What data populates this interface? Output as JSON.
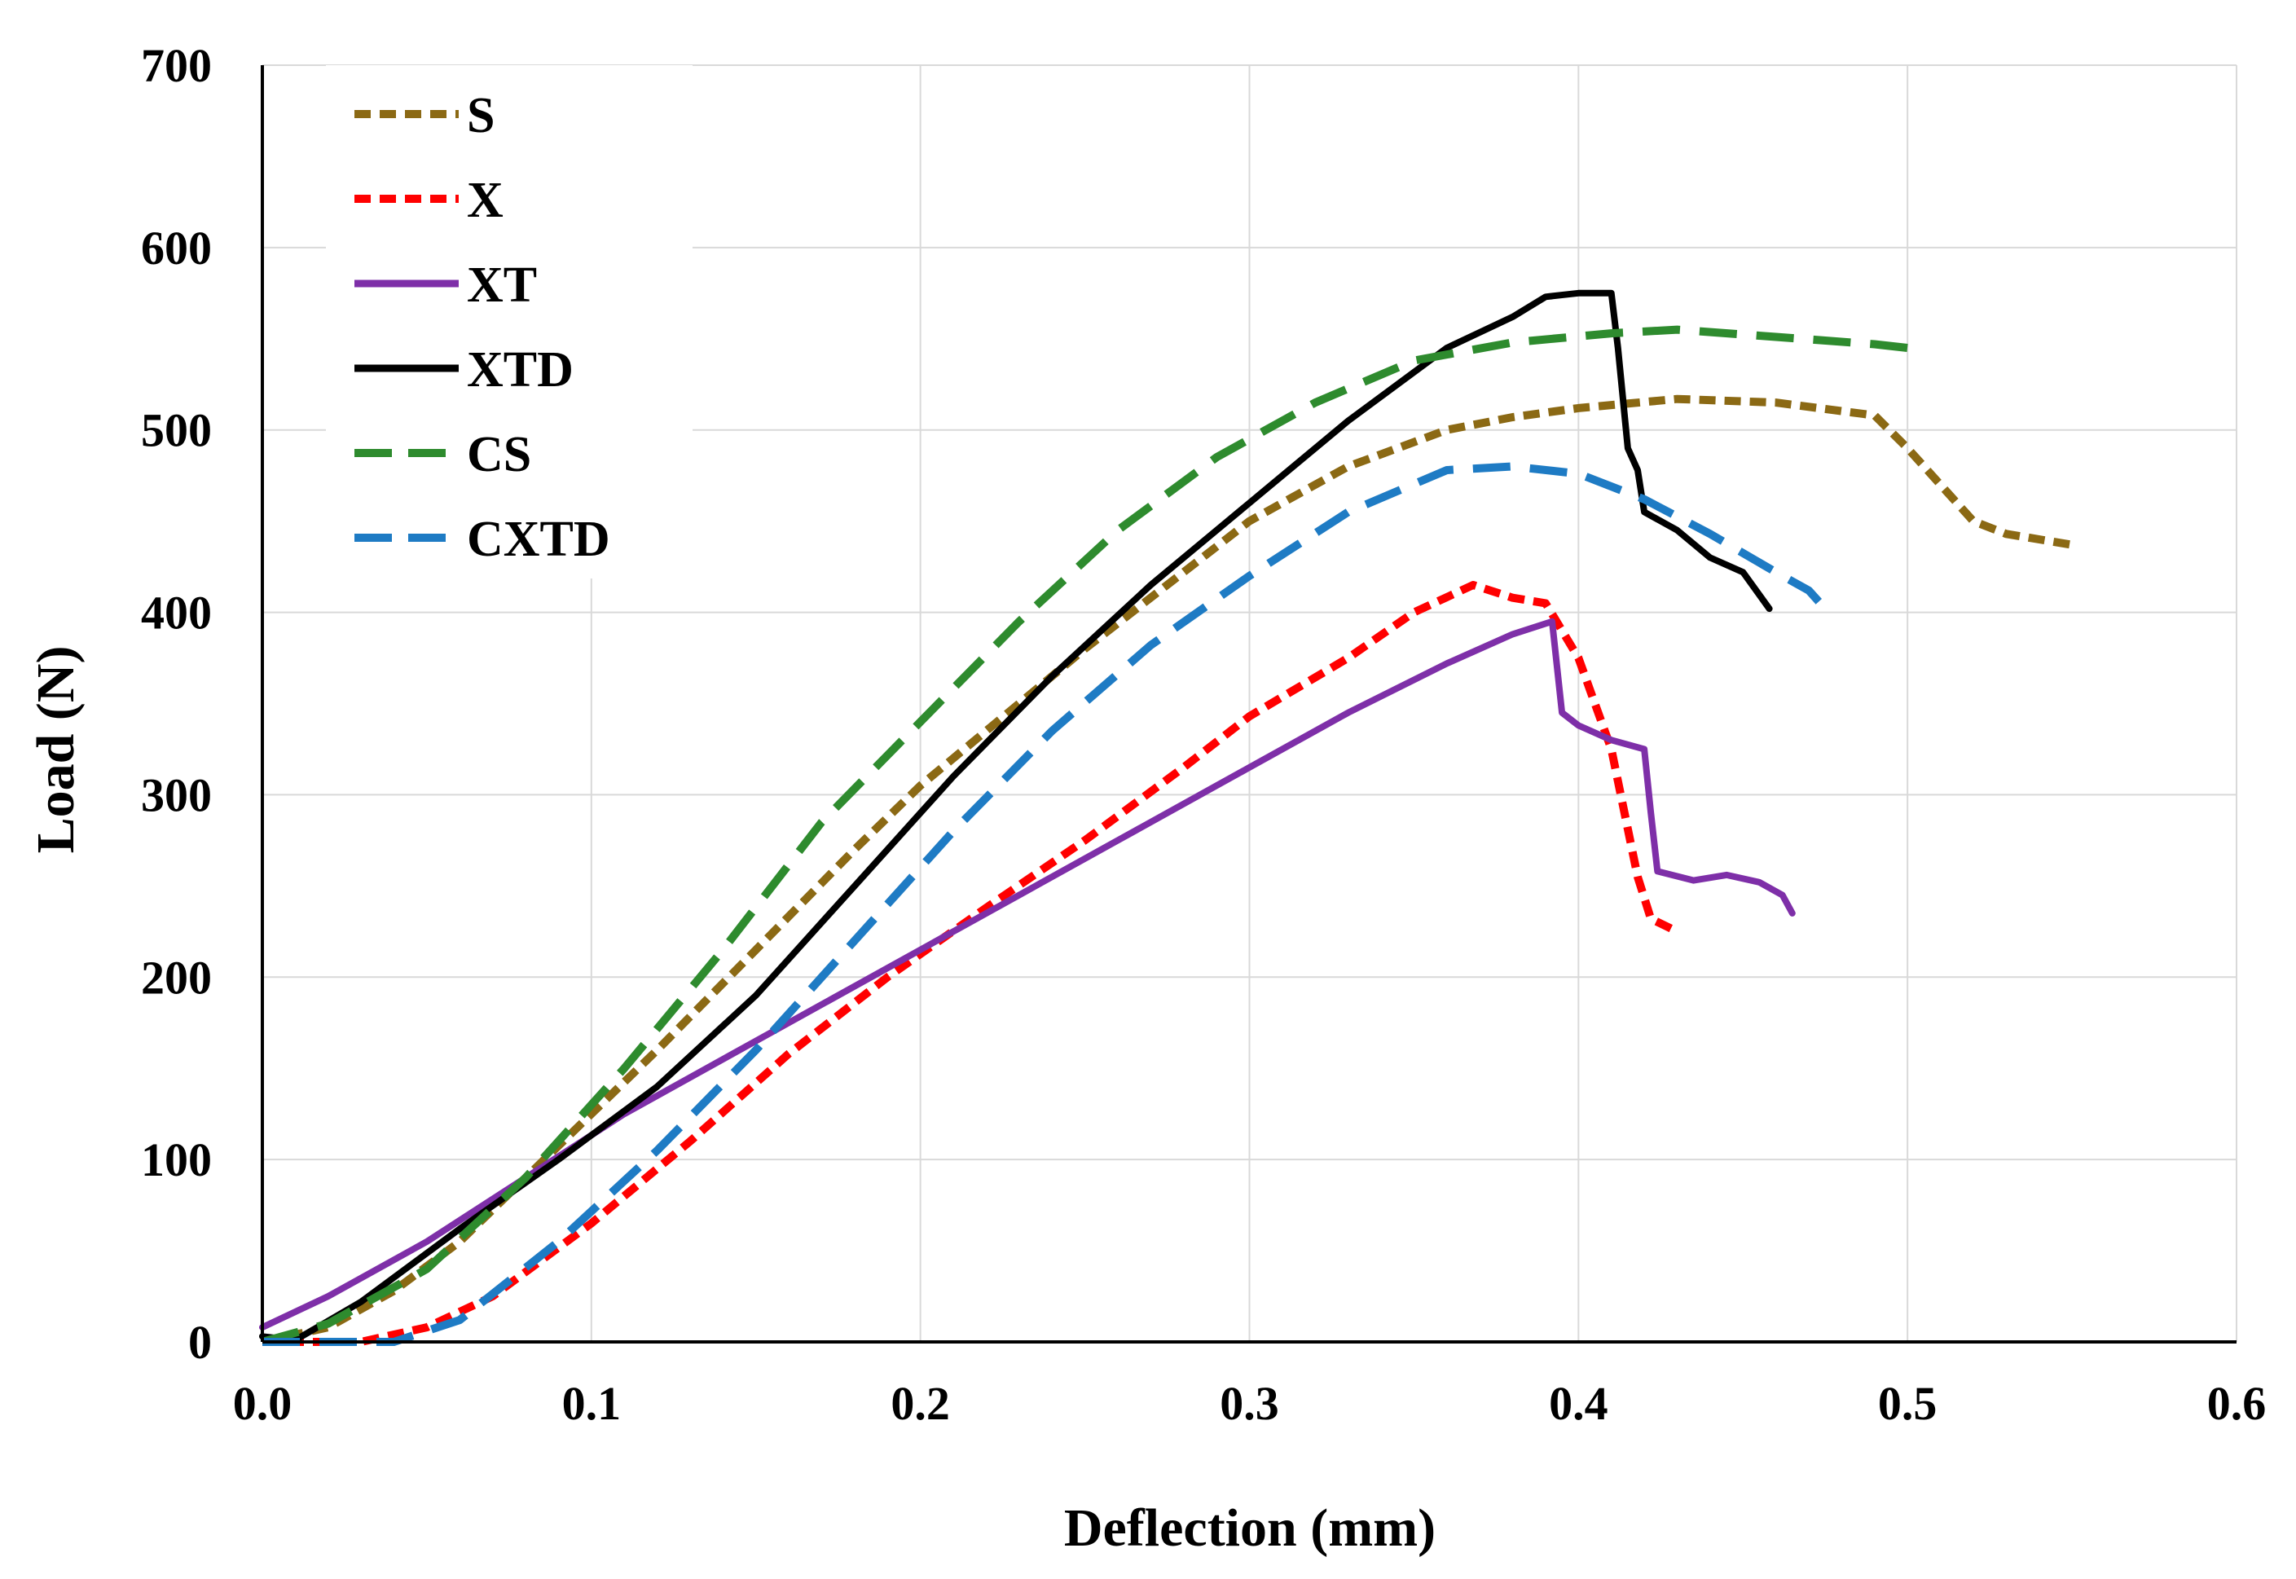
{
  "chart_data": {
    "type": "line",
    "title": "",
    "xlabel": "Deflection  (mm)",
    "ylabel": "Load  (N)",
    "xlim": [
      0,
      0.6
    ],
    "ylim": [
      0,
      700
    ],
    "xticks": [
      "0.0",
      "0.1",
      "0.2",
      "0.3",
      "0.4",
      "0.5",
      "0.6"
    ],
    "yticks": [
      "0",
      "100",
      "200",
      "300",
      "400",
      "500",
      "600",
      "700"
    ],
    "grid": true,
    "legend_position": "top-left",
    "series": [
      {
        "name": "S",
        "color": "#8B6914",
        "style": "short-dash",
        "points": [
          [
            0.0,
            0
          ],
          [
            0.02,
            8
          ],
          [
            0.04,
            28
          ],
          [
            0.06,
            55
          ],
          [
            0.08,
            90
          ],
          [
            0.1,
            125
          ],
          [
            0.12,
            160
          ],
          [
            0.15,
            215
          ],
          [
            0.18,
            270
          ],
          [
            0.2,
            305
          ],
          [
            0.22,
            335
          ],
          [
            0.25,
            380
          ],
          [
            0.28,
            422
          ],
          [
            0.3,
            450
          ],
          [
            0.33,
            480
          ],
          [
            0.36,
            500
          ],
          [
            0.38,
            507
          ],
          [
            0.4,
            512
          ],
          [
            0.43,
            517
          ],
          [
            0.46,
            515
          ],
          [
            0.49,
            508
          ],
          [
            0.5,
            490
          ],
          [
            0.51,
            470
          ],
          [
            0.52,
            450
          ],
          [
            0.53,
            443
          ],
          [
            0.55,
            437
          ]
        ]
      },
      {
        "name": "X",
        "color": "#FF0000",
        "style": "short-dash",
        "points": [
          [
            0.0,
            0
          ],
          [
            0.03,
            0
          ],
          [
            0.05,
            8
          ],
          [
            0.07,
            25
          ],
          [
            0.1,
            65
          ],
          [
            0.13,
            110
          ],
          [
            0.16,
            158
          ],
          [
            0.19,
            200
          ],
          [
            0.22,
            238
          ],
          [
            0.25,
            275
          ],
          [
            0.28,
            315
          ],
          [
            0.3,
            343
          ],
          [
            0.33,
            375
          ],
          [
            0.35,
            400
          ],
          [
            0.368,
            415
          ],
          [
            0.38,
            408
          ],
          [
            0.39,
            405
          ],
          [
            0.4,
            375
          ],
          [
            0.41,
            325
          ],
          [
            0.418,
            255
          ],
          [
            0.422,
            232
          ],
          [
            0.43,
            225
          ]
        ]
      },
      {
        "name": "XT",
        "color": "#7E2FA8",
        "style": "solid",
        "points": [
          [
            0.0,
            8
          ],
          [
            0.02,
            25
          ],
          [
            0.05,
            55
          ],
          [
            0.08,
            90
          ],
          [
            0.11,
            125
          ],
          [
            0.14,
            155
          ],
          [
            0.17,
            185
          ],
          [
            0.2,
            215
          ],
          [
            0.23,
            245
          ],
          [
            0.26,
            275
          ],
          [
            0.3,
            315
          ],
          [
            0.33,
            345
          ],
          [
            0.36,
            372
          ],
          [
            0.38,
            388
          ],
          [
            0.392,
            395
          ],
          [
            0.395,
            345
          ],
          [
            0.4,
            338
          ],
          [
            0.41,
            330
          ],
          [
            0.42,
            325
          ],
          [
            0.422,
            290
          ],
          [
            0.424,
            258
          ],
          [
            0.435,
            253
          ],
          [
            0.445,
            256
          ],
          [
            0.455,
            252
          ],
          [
            0.462,
            245
          ],
          [
            0.465,
            235
          ]
        ]
      },
      {
        "name": "XTD",
        "color": "#000000",
        "style": "solid",
        "points": [
          [
            0.0,
            3
          ],
          [
            0.01,
            1
          ],
          [
            0.03,
            22
          ],
          [
            0.06,
            62
          ],
          [
            0.09,
            100
          ],
          [
            0.12,
            140
          ],
          [
            0.15,
            190
          ],
          [
            0.18,
            250
          ],
          [
            0.21,
            310
          ],
          [
            0.24,
            365
          ],
          [
            0.27,
            415
          ],
          [
            0.3,
            460
          ],
          [
            0.33,
            505
          ],
          [
            0.36,
            545
          ],
          [
            0.38,
            562
          ],
          [
            0.39,
            573
          ],
          [
            0.4,
            575
          ],
          [
            0.41,
            575
          ],
          [
            0.412,
            545
          ],
          [
            0.415,
            490
          ],
          [
            0.418,
            478
          ],
          [
            0.42,
            455
          ],
          [
            0.43,
            445
          ],
          [
            0.44,
            430
          ],
          [
            0.45,
            422
          ],
          [
            0.458,
            402
          ]
        ]
      },
      {
        "name": "CS",
        "color": "#2E8B2E",
        "style": "dash",
        "points": [
          [
            0.0,
            0
          ],
          [
            0.02,
            10
          ],
          [
            0.05,
            40
          ],
          [
            0.08,
            90
          ],
          [
            0.11,
            150
          ],
          [
            0.14,
            215
          ],
          [
            0.17,
            285
          ],
          [
            0.2,
            340
          ],
          [
            0.23,
            395
          ],
          [
            0.26,
            445
          ],
          [
            0.29,
            485
          ],
          [
            0.32,
            515
          ],
          [
            0.35,
            538
          ],
          [
            0.38,
            548
          ],
          [
            0.41,
            553
          ],
          [
            0.43,
            555
          ],
          [
            0.46,
            551
          ],
          [
            0.49,
            547
          ],
          [
            0.5,
            545
          ]
        ]
      },
      {
        "name": "CXTD",
        "color": "#1E7BC4",
        "style": "dash",
        "points": [
          [
            0.0,
            0
          ],
          [
            0.04,
            0
          ],
          [
            0.06,
            12
          ],
          [
            0.09,
            55
          ],
          [
            0.12,
            105
          ],
          [
            0.15,
            160
          ],
          [
            0.18,
            220
          ],
          [
            0.21,
            280
          ],
          [
            0.24,
            335
          ],
          [
            0.27,
            382
          ],
          [
            0.3,
            420
          ],
          [
            0.33,
            455
          ],
          [
            0.36,
            478
          ],
          [
            0.38,
            480
          ],
          [
            0.4,
            476
          ],
          [
            0.42,
            462
          ],
          [
            0.44,
            443
          ],
          [
            0.46,
            422
          ],
          [
            0.47,
            412
          ],
          [
            0.476,
            400
          ]
        ]
      }
    ]
  }
}
